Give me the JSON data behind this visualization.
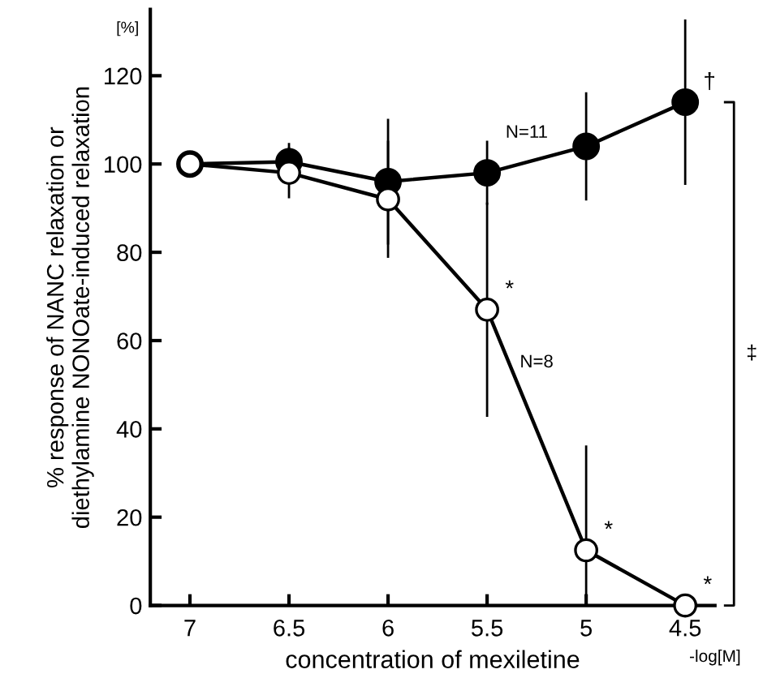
{
  "chart_data": {
    "type": "line",
    "xlabel": "concentration of mexiletine",
    "ylabel": "% response of NANC relaxation or\ndiethylamine NONOate-induced relaxation",
    "x": [
      7,
      6.5,
      6,
      5.5,
      5,
      4.5
    ],
    "series": [
      {
        "color": "#000000",
        "values": [
          100,
          100.5,
          96,
          98,
          104,
          114
        ],
        "errors": [
          null,
          4,
          14,
          7,
          12,
          18.5
        ]
      },
      {
        "color": "#ffffff",
        "values": [
          100,
          98,
          92,
          67,
          12.5,
          0
        ],
        "errors": [
          null,
          5.5,
          13,
          24,
          [
            0,
            36
          ],
          null
        ]
      }
    ],
    "xlim": [
      7.2,
      4.35
    ],
    "xticks": [
      7,
      6.5,
      6,
      5.5,
      5,
      4.5
    ],
    "ylim": [
      0,
      135
    ],
    "yticks": [
      0,
      20,
      40,
      60,
      80,
      100,
      120
    ],
    "marker": "circle",
    "line_style": "solid",
    "grid": false,
    "legend": false,
    "annotations": [
      "[%]",
      "-log[M]",
      "‡",
      {
        "text": "*",
        "x": 5.5,
        "y": 67
      },
      {
        "text": "*",
        "x": 5,
        "y": 12.5
      },
      {
        "text": "*",
        "x": 4.5,
        "y": 0
      },
      {
        "text": "†",
        "x": 4.5,
        "y": 114
      },
      "N=11",
      "N=8"
    ]
  }
}
